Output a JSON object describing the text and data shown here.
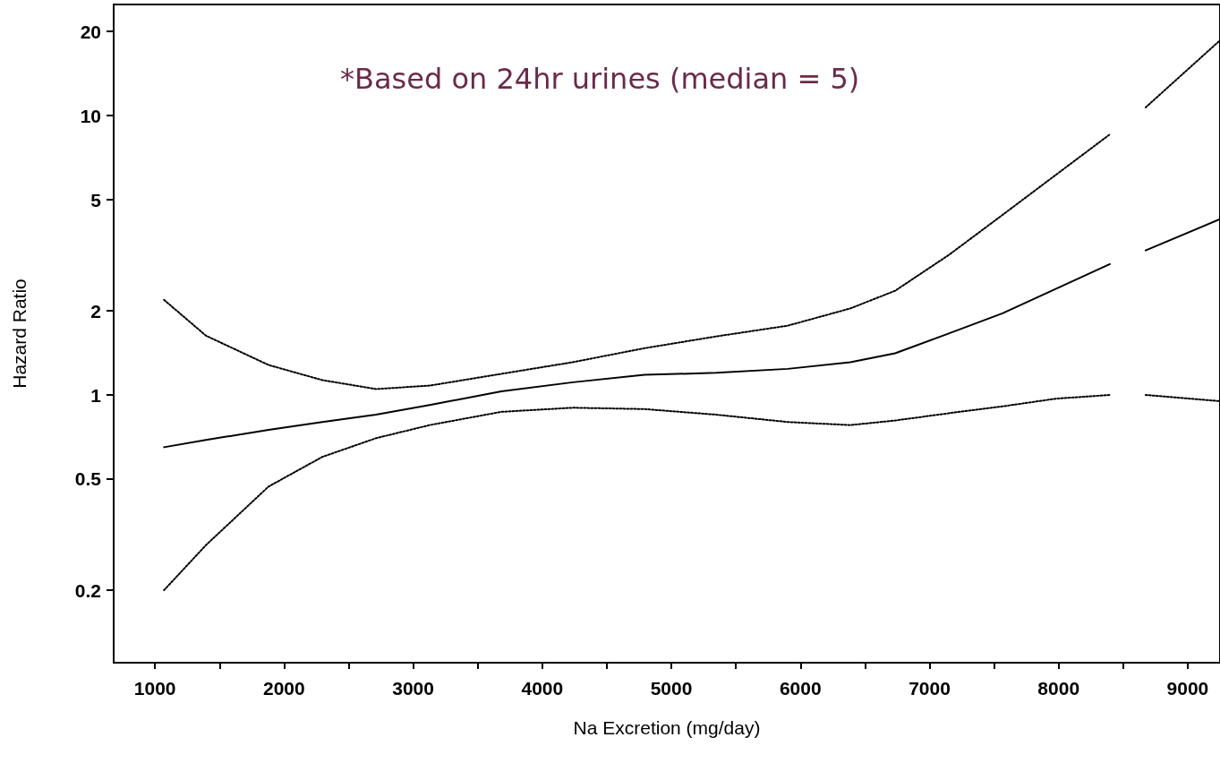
{
  "chart_data": {
    "type": "line",
    "xlabel": "Na Excretion (mg/day)",
    "ylabel": "Hazard Ratio",
    "annotations": [
      "*Based on 24hr urines (median = 5)"
    ],
    "log": "y",
    "grid": false,
    "xlim": [
      680,
      9250
    ],
    "ylim": [
      0.11,
      25
    ],
    "xticks": [
      1000,
      {
        "value": 1500,
        "label": null
      },
      2000,
      {
        "value": 2500,
        "label": null
      },
      3000,
      {
        "value": 3500,
        "label": null
      },
      4000,
      {
        "value": 4500,
        "label": null
      },
      5000,
      {
        "value": 5500,
        "label": null
      },
      6000,
      {
        "value": 6500,
        "label": null
      },
      7000,
      {
        "value": 7500,
        "label": null
      },
      8000,
      {
        "value": 8500,
        "label": null
      },
      9000
    ],
    "yticks": [
      0.2,
      0.5,
      1,
      2,
      5,
      10,
      20
    ],
    "x": [
      1070,
      1395,
      1880,
      2296,
      2712,
      3128,
      3683,
      4237,
      4792,
      5347,
      5902,
      6386,
      6733,
      7149,
      7565,
      7981,
      8397,
      8550,
      8674,
      9250
    ],
    "series": [
      {
        "color": "#000000",
        "line_style": "solid",
        "values": [
          0.65,
          0.69,
          0.75,
          0.8,
          0.85,
          0.92,
          1.03,
          1.11,
          1.18,
          1.2,
          1.24,
          1.31,
          1.41,
          1.66,
          1.96,
          2.4,
          2.94,
          null,
          3.29,
          4.26
        ]
      },
      {
        "color": "#000000",
        "line_style": "dotted",
        "values": [
          2.19,
          1.63,
          1.28,
          1.13,
          1.05,
          1.08,
          1.19,
          1.31,
          1.47,
          1.62,
          1.77,
          2.04,
          2.36,
          3.17,
          4.41,
          6.15,
          8.57,
          null,
          10.7,
          18.6
        ]
      },
      {
        "color": "#000000",
        "line_style": "dotted",
        "values": [
          0.2,
          0.29,
          0.47,
          0.6,
          0.7,
          0.78,
          0.87,
          0.9,
          0.89,
          0.85,
          0.8,
          0.78,
          0.81,
          0.86,
          0.91,
          0.97,
          1.0,
          null,
          1.0,
          0.95
        ]
      }
    ]
  }
}
